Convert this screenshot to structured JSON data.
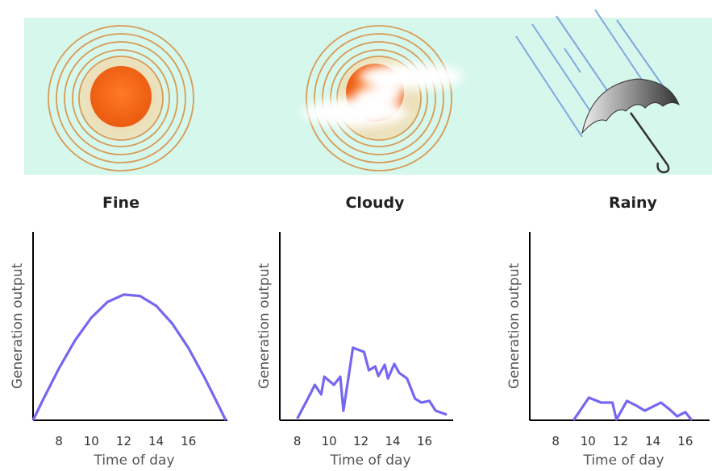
{
  "chart_data": [
    {
      "type": "line",
      "title": "Fine",
      "ylabel": "Generation output",
      "xlabel": "Time of day",
      "color": "#7567f0",
      "x": [
        6.4,
        7,
        8,
        9,
        10,
        11,
        12,
        13,
        14,
        15,
        16,
        17,
        18,
        18.3
      ],
      "values": [
        0,
        10.6,
        27.5,
        42.5,
        54.5,
        62.8,
        66.7,
        66.0,
        60.8,
        51.3,
        38.3,
        22.5,
        5.3,
        0
      ],
      "xlim": [
        6.4,
        18.4
      ],
      "ylim": [
        0,
        100
      ],
      "xticks": [
        8,
        10,
        12,
        14,
        16
      ]
    },
    {
      "type": "line",
      "title": "Cloudy",
      "ylabel": "Generation output",
      "xlabel": "Time of day",
      "color": "#7567f0",
      "x": [
        8.0,
        8.8,
        9.1,
        9.5,
        9.7,
        10.3,
        10.7,
        10.9,
        11.5,
        12.2,
        12.5,
        12.9,
        13.1,
        13.5,
        13.7,
        14.1,
        14.4,
        14.9,
        15.4,
        15.8,
        16.3,
        16.7,
        17.4
      ],
      "values": [
        0.9,
        13.7,
        18.8,
        13.7,
        23.1,
        18.8,
        23.1,
        5.1,
        38.5,
        36.3,
        26.5,
        28.6,
        23.5,
        29.5,
        22.2,
        29.9,
        25.2,
        22.2,
        11.5,
        9.4,
        10.3,
        5.1,
        3.0
      ],
      "xlim": [
        6.9,
        17.8
      ],
      "ylim": [
        0,
        100
      ],
      "xticks": [
        8,
        10,
        12,
        14,
        16
      ]
    },
    {
      "type": "line",
      "title": "Rainy",
      "ylabel": "Generation output",
      "xlabel": "Time of day",
      "color": "#7567f0",
      "x": [
        9.1,
        10.05,
        10.8,
        11.5,
        11.75,
        12.4,
        13.0,
        13.5,
        14.5,
        15.0,
        15.5,
        16.0,
        16.4
      ],
      "values": [
        0,
        12.0,
        9.4,
        9.4,
        0.4,
        10.3,
        7.7,
        5.1,
        9.4,
        6.0,
        2.1,
        4.3,
        0
      ],
      "xlim": [
        6.4,
        17.5
      ],
      "ylim": [
        0,
        100
      ],
      "xticks": [
        8,
        10,
        12,
        14,
        16
      ]
    }
  ]
}
